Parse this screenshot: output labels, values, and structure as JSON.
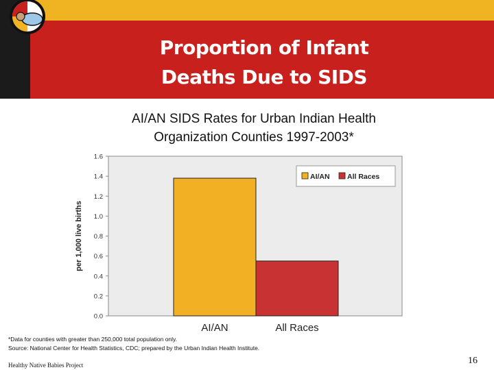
{
  "slide": {
    "title_line1": "Proportion of Infant",
    "title_line2": "Deaths Due to SIDS",
    "footnote1": "*Data for counties with greater than 250,000 total population only.",
    "footnote2": "Source: National Center for Health Statistics, CDC; prepared by the Urban Indian Health Institute.",
    "credit": "Healthy Native Babies Project",
    "page_number": "16"
  },
  "chart_data": {
    "type": "bar",
    "title_line1": "AI/AN SIDS Rates for Urban Indian Health",
    "title_line2": "Organization Counties 1997-2003*",
    "categories": [
      "AI/AN",
      "All Races"
    ],
    "values": [
      1.38,
      0.55
    ],
    "colors": [
      "#f2b024",
      "#c93232"
    ],
    "ylabel": "per 1,000 live births",
    "ylim": [
      0,
      1.6
    ],
    "yticks": [
      "0.0",
      "0.2",
      "0.4",
      "0.6",
      "0.8",
      "1.0",
      "1.2",
      "1.4",
      "1.6"
    ],
    "legend": [
      "AI/AN",
      "All Races"
    ],
    "legend_position": "top-right"
  }
}
